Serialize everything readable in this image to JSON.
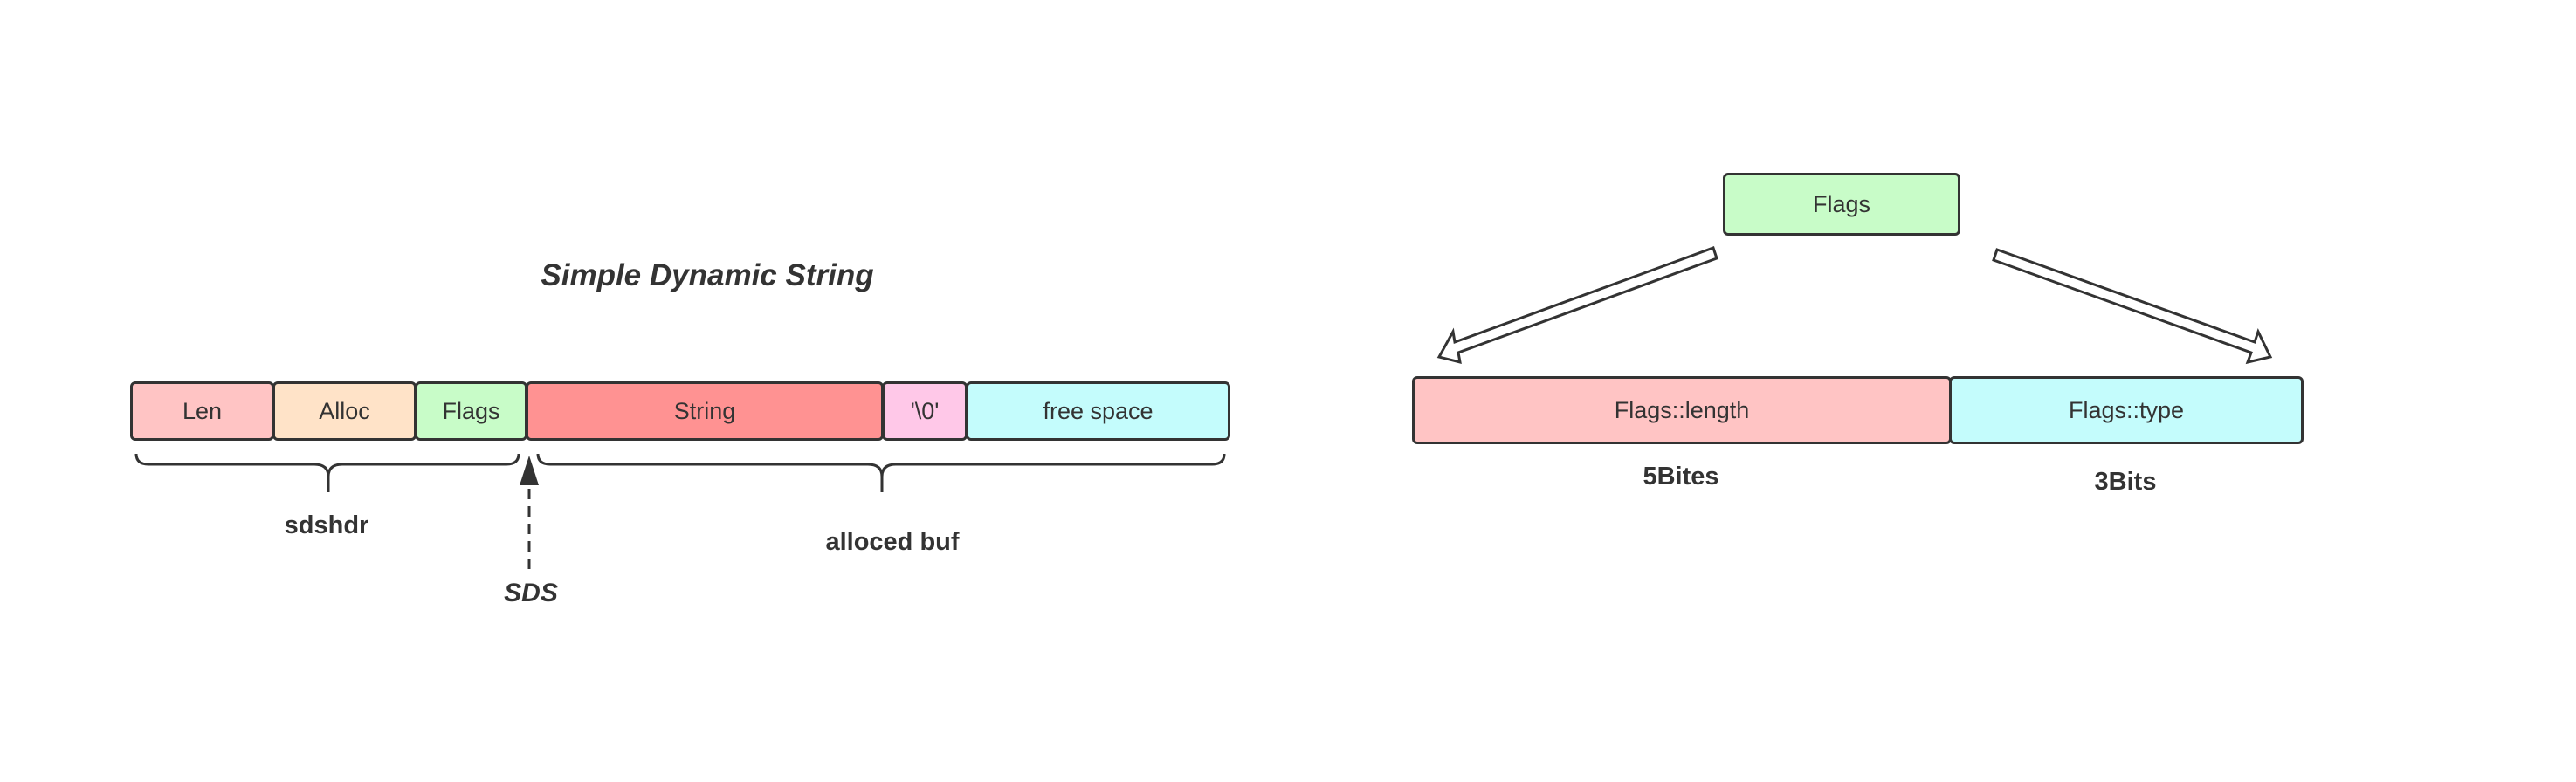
{
  "sds": {
    "title": "Simple Dynamic String",
    "fields": [
      {
        "label": "Len",
        "color": "#ffc4c4"
      },
      {
        "label": "Alloc",
        "color": "#ffe3c8"
      },
      {
        "label": "Flags",
        "color": "#c8fcc8"
      },
      {
        "label": "String",
        "color": "#ff9292"
      },
      {
        "label": "'\\0'",
        "color": "#ffc8e8"
      },
      {
        "label": "free space",
        "color": "#c4fcfc"
      }
    ],
    "header_label": "sdshdr",
    "buf_label": "alloced buf",
    "pointer_label": "SDS"
  },
  "flags": {
    "top": {
      "label": "Flags",
      "color": "#c8fcc8"
    },
    "length": {
      "label": "Flags::length",
      "color": "#ffc4c4",
      "size": "5Bites"
    },
    "type": {
      "label": "Flags::type",
      "color": "#c4fcfc",
      "size": "3Bits"
    }
  }
}
